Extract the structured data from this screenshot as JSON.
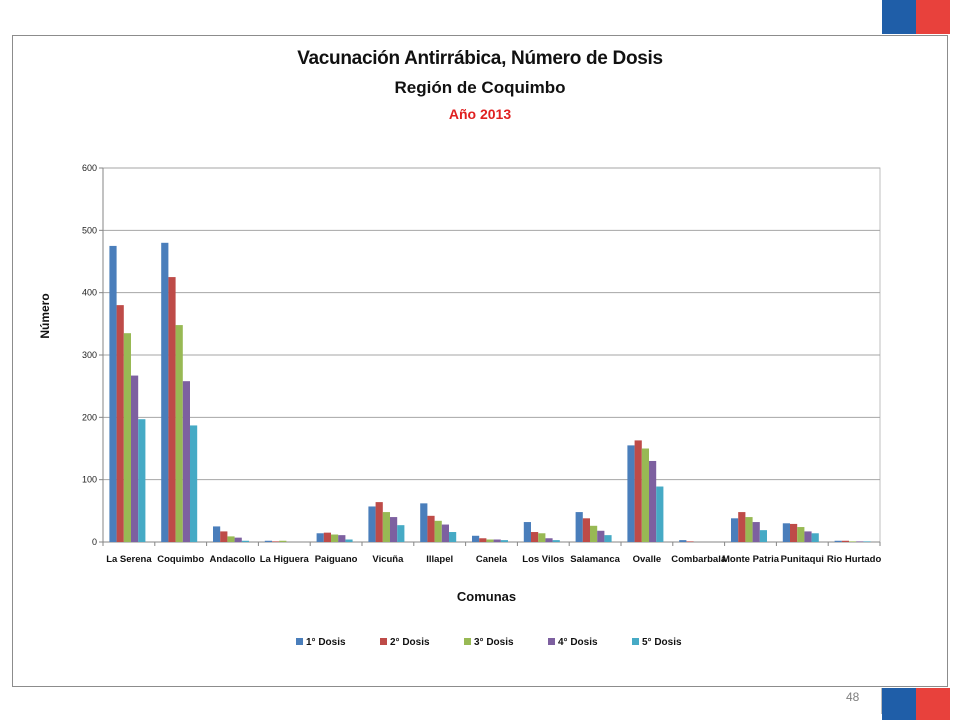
{
  "slide": {
    "page_number": "48",
    "flag_colors": {
      "blue": "#1f5ea8",
      "red": "#e8413c"
    }
  },
  "chart_data": {
    "type": "bar",
    "title": "Vacunación Antirrábica, Número de Dosis",
    "subtitle": "Región de Coquimbo",
    "year_label": "Año 2013",
    "xlabel": "Comunas",
    "ylabel": "Número",
    "ylim": [
      0,
      600
    ],
    "yticks": [
      0,
      100,
      200,
      300,
      400,
      500,
      600
    ],
    "grid": true,
    "legend_position": "bottom",
    "categories": [
      "La Serena",
      "Coquimbo",
      "Andacollo",
      "La Higuera",
      "Paiguano",
      "Vicuña",
      "Illapel",
      "Canela",
      "Los Vilos",
      "Salamanca",
      "Ovalle",
      "Combarbalá",
      "Monte Patria",
      "Punitaqui",
      "Rio Hurtado"
    ],
    "series": [
      {
        "name": "1° Dosis",
        "color": "#4a7ebb",
        "values": [
          475,
          480,
          25,
          2,
          14,
          57,
          62,
          10,
          32,
          48,
          155,
          3,
          38,
          30,
          2
        ]
      },
      {
        "name": "2° Dosis",
        "color": "#be4b48",
        "values": [
          380,
          425,
          17,
          1,
          15,
          64,
          42,
          6,
          16,
          38,
          163,
          1,
          48,
          29,
          2
        ]
      },
      {
        "name": "3° Dosis",
        "color": "#98b954",
        "values": [
          335,
          348,
          9,
          2,
          12,
          48,
          34,
          4,
          14,
          26,
          150,
          0,
          40,
          24,
          1
        ]
      },
      {
        "name": "4° Dosis",
        "color": "#7d60a0",
        "values": [
          267,
          258,
          7,
          0,
          11,
          40,
          28,
          4,
          6,
          18,
          130,
          0,
          32,
          17,
          1
        ]
      },
      {
        "name": "5° Dosis",
        "color": "#46aac5",
        "values": [
          197,
          187,
          2,
          0,
          4,
          27,
          16,
          3,
          3,
          11,
          89,
          0,
          19,
          14,
          1
        ]
      }
    ]
  }
}
